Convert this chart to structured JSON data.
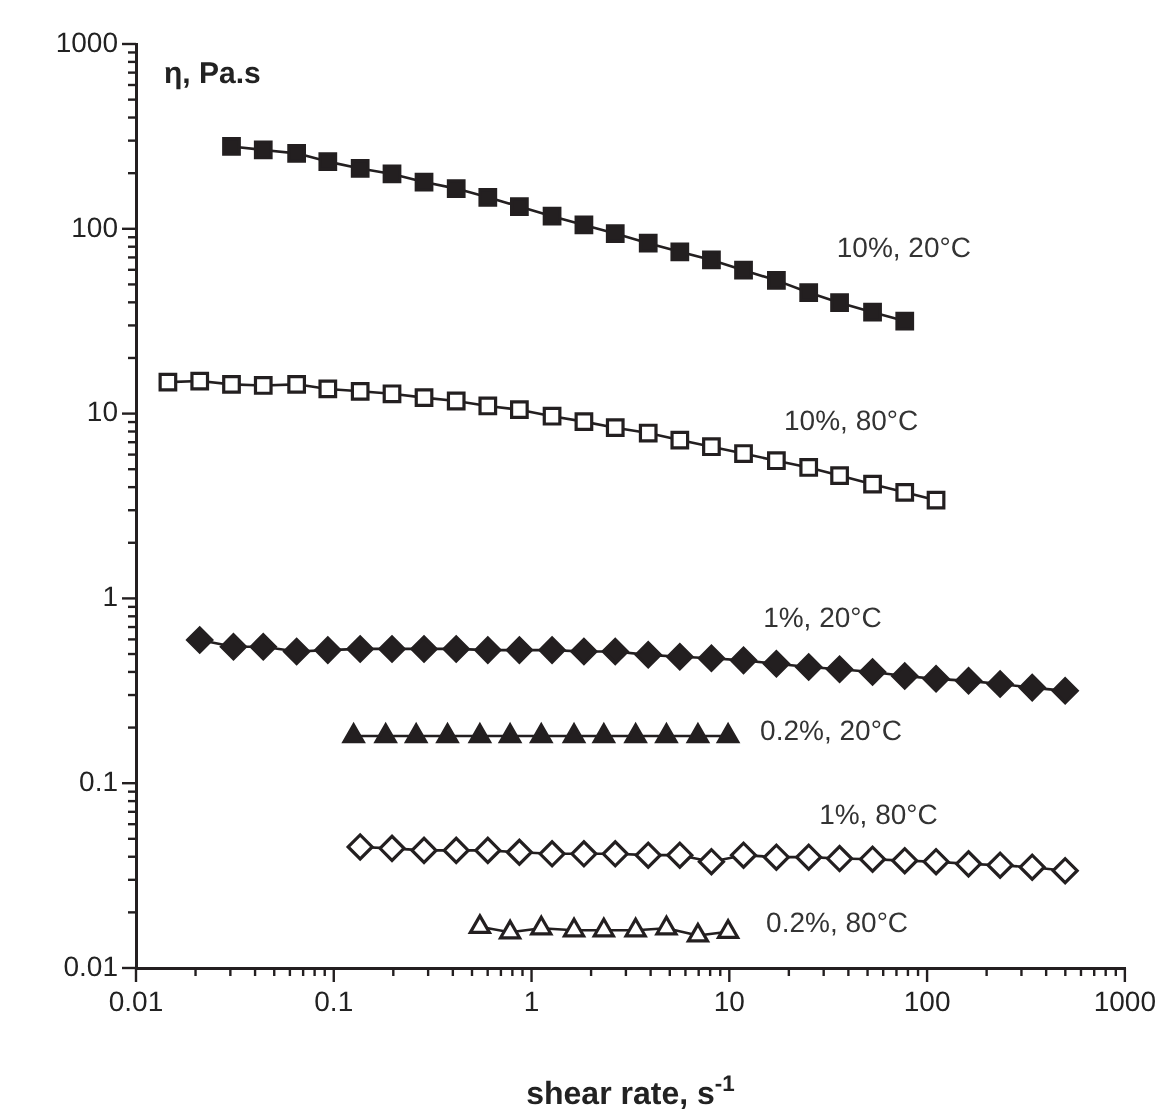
{
  "chart_data": {
    "type": "line",
    "xlabel": "shear rate, s$^{-1}$",
    "ylabel": "η, Pa.s",
    "log": "xy",
    "grid": false,
    "legend": false,
    "xlim": [
      0.01,
      1000
    ],
    "ylim": [
      0.01,
      1000
    ],
    "xticks": [
      0.01,
      {
        "value": 0.02,
        "label": null
      },
      {
        "value": 0.03,
        "label": null
      },
      {
        "value": 0.04,
        "label": null
      },
      {
        "value": 0.05,
        "label": null
      },
      {
        "value": 0.06,
        "label": null
      },
      {
        "value": 0.07,
        "label": null
      },
      {
        "value": 0.08,
        "label": null
      },
      {
        "value": 0.09,
        "label": null
      },
      0.1,
      {
        "value": 0.2,
        "label": null
      },
      {
        "value": 0.3,
        "label": null
      },
      {
        "value": 0.4,
        "label": null
      },
      {
        "value": 0.5,
        "label": null
      },
      {
        "value": 0.6,
        "label": null
      },
      {
        "value": 0.7,
        "label": null
      },
      {
        "value": 0.8,
        "label": null
      },
      {
        "value": 0.9,
        "label": null
      },
      1,
      {
        "value": 2,
        "label": null
      },
      {
        "value": 3,
        "label": null
      },
      {
        "value": 4,
        "label": null
      },
      {
        "value": 5,
        "label": null
      },
      {
        "value": 6,
        "label": null
      },
      {
        "value": 7,
        "label": null
      },
      {
        "value": 8,
        "label": null
      },
      {
        "value": 9,
        "label": null
      },
      10,
      {
        "value": 20,
        "label": null
      },
      {
        "value": 30,
        "label": null
      },
      {
        "value": 40,
        "label": null
      },
      {
        "value": 50,
        "label": null
      },
      {
        "value": 60,
        "label": null
      },
      {
        "value": 70,
        "label": null
      },
      {
        "value": 80,
        "label": null
      },
      {
        "value": 90,
        "label": null
      },
      100,
      {
        "value": 200,
        "label": null
      },
      {
        "value": 300,
        "label": null
      },
      {
        "value": 400,
        "label": null
      },
      {
        "value": 500,
        "label": null
      },
      {
        "value": 600,
        "label": null
      },
      {
        "value": 700,
        "label": null
      },
      {
        "value": 800,
        "label": null
      },
      {
        "value": 900,
        "label": null
      },
      1000
    ],
    "yticks": [
      0.01,
      {
        "value": 0.02,
        "label": null
      },
      {
        "value": 0.03,
        "label": null
      },
      {
        "value": 0.04,
        "label": null
      },
      {
        "value": 0.05,
        "label": null
      },
      {
        "value": 0.06,
        "label": null
      },
      {
        "value": 0.07,
        "label": null
      },
      {
        "value": 0.08,
        "label": null
      },
      {
        "value": 0.09,
        "label": null
      },
      0.1,
      {
        "value": 0.2,
        "label": null
      },
      {
        "value": 0.3,
        "label": null
      },
      {
        "value": 0.4,
        "label": null
      },
      {
        "value": 0.5,
        "label": null
      },
      {
        "value": 0.6,
        "label": null
      },
      {
        "value": 0.7,
        "label": null
      },
      {
        "value": 0.8,
        "label": null
      },
      {
        "value": 0.9,
        "label": null
      },
      1,
      {
        "value": 2,
        "label": null
      },
      {
        "value": 3,
        "label": null
      },
      {
        "value": 4,
        "label": null
      },
      {
        "value": 5,
        "label": null
      },
      {
        "value": 6,
        "label": null
      },
      {
        "value": 7,
        "label": null
      },
      {
        "value": 8,
        "label": null
      },
      {
        "value": 9,
        "label": null
      },
      10,
      {
        "value": 20,
        "label": null
      },
      {
        "value": 30,
        "label": null
      },
      {
        "value": 40,
        "label": null
      },
      {
        "value": 50,
        "label": null
      },
      {
        "value": 60,
        "label": null
      },
      {
        "value": 70,
        "label": null
      },
      {
        "value": 80,
        "label": null
      },
      {
        "value": 90,
        "label": null
      },
      100,
      {
        "value": 200,
        "label": null
      },
      {
        "value": 300,
        "label": null
      },
      {
        "value": 400,
        "label": null
      },
      {
        "value": 500,
        "label": null
      },
      {
        "value": 600,
        "label": null
      },
      {
        "value": 700,
        "label": null
      },
      {
        "value": 800,
        "label": null
      },
      {
        "value": 900,
        "label": null
      },
      1000
    ],
    "series": [
      {
        "name": "10%, 20°C",
        "color": "#231f20",
        "marker": "square",
        "x": [
          0.0304,
          0.044,
          0.0649,
          0.0933,
          0.136,
          0.197,
          0.286,
          0.416,
          0.601,
          0.868,
          1.27,
          1.84,
          2.65,
          3.89,
          5.62,
          8.12,
          11.8,
          17.3,
          25.2,
          36.1,
          53.0,
          77.1
        ],
        "values": [
          279,
          267,
          256,
          231,
          212,
          198,
          179,
          165,
          148,
          132,
          117,
          105,
          94.3,
          83.6,
          75.1,
          67.8,
          59.7,
          52.6,
          45.2,
          39.8,
          35.4,
          31.7
        ]
      },
      {
        "name": "10%, 80°C",
        "color": "#231f20",
        "marker": "square-open",
        "x": [
          0.0145,
          0.021,
          0.0304,
          0.044,
          0.0649,
          0.0933,
          0.136,
          0.197,
          0.286,
          0.416,
          0.601,
          0.868,
          1.27,
          1.84,
          2.65,
          3.89,
          5.62,
          8.12,
          11.8,
          17.3,
          25.2,
          36.1,
          53.0,
          77.1,
          111
        ],
        "values": [
          14.8,
          15.0,
          14.4,
          14.2,
          14.4,
          13.6,
          13.2,
          12.8,
          12.2,
          11.7,
          11.0,
          10.5,
          9.68,
          9.05,
          8.39,
          7.85,
          7.19,
          6.62,
          6.08,
          5.56,
          5.11,
          4.62,
          4.15,
          3.75,
          3.4
        ]
      },
      {
        "name": "1%, 20°C",
        "color": "#231f20",
        "marker": "diamond",
        "x": [
          0.021,
          0.0311,
          0.044,
          0.0649,
          0.0933,
          0.136,
          0.197,
          0.286,
          0.416,
          0.601,
          0.868,
          1.27,
          1.84,
          2.65,
          3.89,
          5.62,
          8.12,
          11.8,
          17.3,
          25.2,
          36.1,
          53.0,
          77.1,
          111,
          162,
          234,
          340,
          499
        ],
        "values": [
          0.596,
          0.547,
          0.547,
          0.516,
          0.525,
          0.533,
          0.533,
          0.533,
          0.533,
          0.525,
          0.525,
          0.525,
          0.516,
          0.516,
          0.495,
          0.483,
          0.474,
          0.462,
          0.443,
          0.425,
          0.414,
          0.4,
          0.38,
          0.367,
          0.358,
          0.344,
          0.329,
          0.316
        ]
      },
      {
        "name": "0.2%, 20°C",
        "color": "#231f20",
        "marker": "triangle",
        "x": [
          0.126,
          0.183,
          0.261,
          0.376,
          0.548,
          0.779,
          1.12,
          1.64,
          2.32,
          3.36,
          4.81,
          6.94,
          9.86
        ],
        "values": [
          0.18,
          0.18,
          0.18,
          0.18,
          0.18,
          0.18,
          0.18,
          0.18,
          0.18,
          0.18,
          0.18,
          0.18,
          0.18
        ]
      },
      {
        "name": "1%, 80°C",
        "color": "#231f20",
        "marker": "diamond-open",
        "x": [
          0.136,
          0.197,
          0.286,
          0.416,
          0.601,
          0.868,
          1.27,
          1.84,
          2.65,
          3.89,
          5.62,
          8.12,
          11.8,
          17.3,
          25.2,
          36.1,
          53.0,
          77.1,
          111,
          162,
          234,
          340,
          499
        ],
        "values": [
          0.0452,
          0.0444,
          0.0433,
          0.0433,
          0.0433,
          0.0423,
          0.0415,
          0.0415,
          0.0415,
          0.0408,
          0.0408,
          0.0376,
          0.0408,
          0.0398,
          0.0398,
          0.0391,
          0.0388,
          0.0381,
          0.0376,
          0.0366,
          0.036,
          0.0351,
          0.0336
        ]
      },
      {
        "name": "0.2%, 80°C",
        "color": "#231f20",
        "marker": "triangle-open",
        "x": [
          0.548,
          0.779,
          1.12,
          1.64,
          2.32,
          3.36,
          4.81,
          6.94,
          9.86
        ],
        "values": [
          0.0167,
          0.0156,
          0.0164,
          0.016,
          0.016,
          0.016,
          0.0164,
          0.015,
          0.0157
        ]
      }
    ]
  }
}
